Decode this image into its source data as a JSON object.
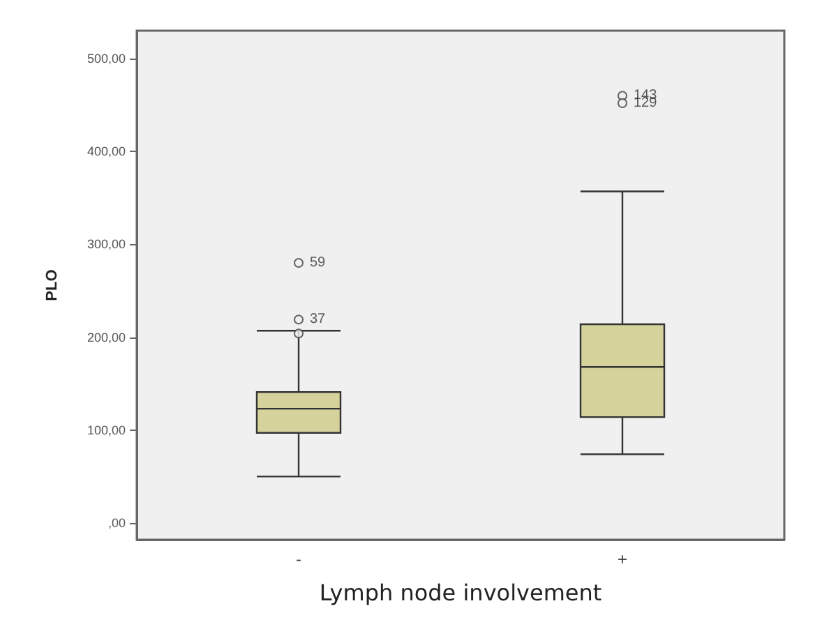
{
  "chart_data": {
    "type": "box",
    "xlabel": "Lymph node involvement",
    "ylabel": "PLO",
    "categories": [
      "-",
      "+"
    ],
    "boxes": [
      {
        "low": 50,
        "q1": 97,
        "median": 123,
        "q3": 141,
        "high": 207,
        "outliers": [
          280,
          219,
          204
        ]
      },
      {
        "low": 74,
        "q1": 114,
        "median": 168,
        "q3": 214,
        "high": 357,
        "outliers": [
          460,
          452
        ]
      }
    ],
    "color": "#d6d29c",
    "ylim": [
      -18,
      530
    ],
    "yticks": [
      {
        "value": 0,
        "label": ",00"
      },
      {
        "value": 100,
        "label": "100,00"
      },
      {
        "value": 200,
        "label": "200,00"
      },
      {
        "value": 300,
        "label": "300,00"
      },
      {
        "value": 400,
        "label": "400,00"
      },
      {
        "value": 500,
        "label": "500,00"
      }
    ],
    "grid": false,
    "annotations": [
      "59",
      "37",
      "143",
      "129"
    ]
  }
}
